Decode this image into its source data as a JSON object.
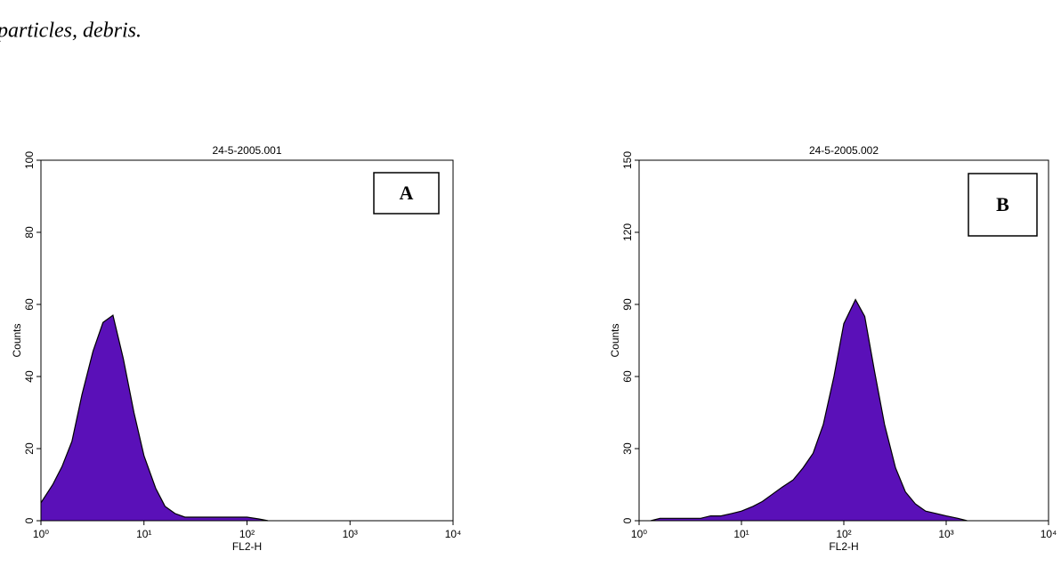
{
  "caption": "particles, debris.",
  "chart_data": [
    {
      "type": "area",
      "title": "24-5-2005.001",
      "panel_label": "A",
      "xlabel": "FL2-H",
      "ylabel": "Counts",
      "xscale": "log",
      "xlim": [
        1,
        10000
      ],
      "xticks": [
        {
          "value": 1,
          "label": "10⁰"
        },
        {
          "value": 10,
          "label": "10¹"
        },
        {
          "value": 100,
          "label": "10²"
        },
        {
          "value": 1000,
          "label": "10³"
        },
        {
          "value": 10000,
          "label": "10⁴"
        }
      ],
      "ylim": [
        0,
        100
      ],
      "yticks": [
        0,
        20,
        40,
        60,
        80,
        100
      ],
      "color": "#5a10b8",
      "x": [
        1,
        1.3,
        1.6,
        2,
        2.5,
        3.2,
        4,
        5,
        6.3,
        8,
        10,
        13,
        16,
        20,
        25,
        32,
        40,
        50,
        63,
        80,
        100,
        130,
        160
      ],
      "values": [
        5,
        10,
        15,
        22,
        35,
        47,
        55,
        57,
        45,
        30,
        18,
        9,
        4,
        2,
        1,
        1,
        1,
        1,
        1,
        1,
        1,
        0.5,
        0
      ]
    },
    {
      "type": "area",
      "title": "24-5-2005.002",
      "panel_label": "B",
      "xlabel": "FL2-H",
      "ylabel": "Counts",
      "xscale": "log",
      "xlim": [
        1,
        10000
      ],
      "xticks": [
        {
          "value": 1,
          "label": "10⁰"
        },
        {
          "value": 10,
          "label": "10¹"
        },
        {
          "value": 100,
          "label": "10²"
        },
        {
          "value": 1000,
          "label": "10³"
        },
        {
          "value": 10000,
          "label": "10⁴"
        }
      ],
      "ylim": [
        0,
        150
      ],
      "yticks": [
        0,
        30,
        60,
        90,
        120,
        150
      ],
      "color": "#5a10b8",
      "x": [
        1.3,
        1.6,
        2,
        2.5,
        3.2,
        4,
        5,
        6.3,
        8,
        10,
        13,
        16,
        20,
        25,
        32,
        40,
        50,
        63,
        80,
        100,
        130,
        160,
        200,
        250,
        320,
        400,
        500,
        630,
        800,
        1000,
        1300,
        1600
      ],
      "values": [
        0,
        1,
        1,
        1,
        1,
        1,
        2,
        2,
        3,
        4,
        6,
        8,
        11,
        14,
        17,
        22,
        28,
        40,
        60,
        82,
        92,
        85,
        62,
        40,
        22,
        12,
        7,
        4,
        3,
        2,
        1,
        0
      ]
    }
  ]
}
